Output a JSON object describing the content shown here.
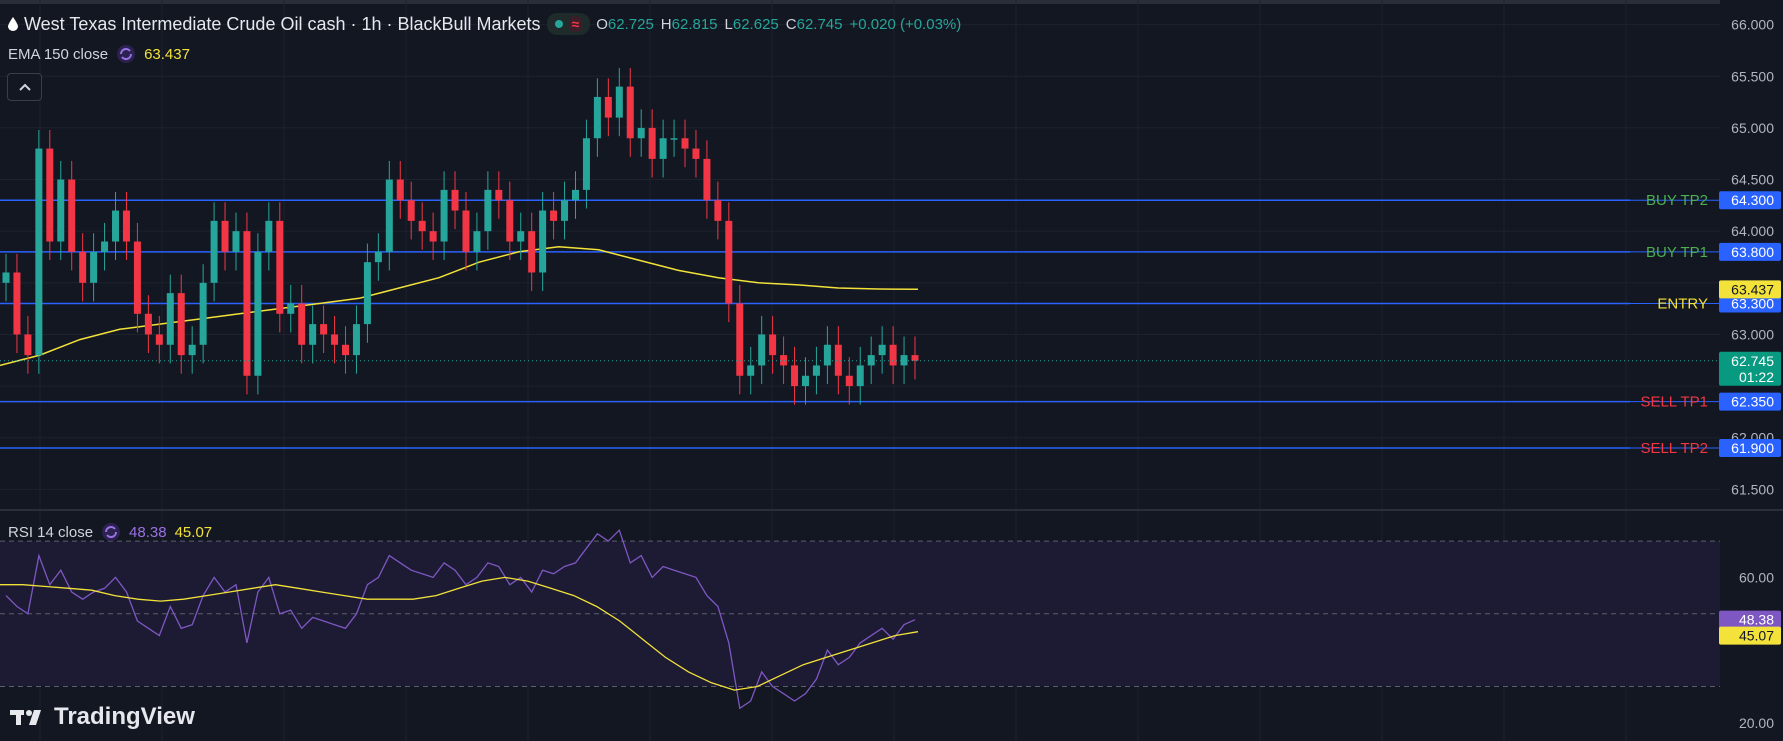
{
  "header": {
    "title": "West Texas Intermediate Crude Oil cash · 1h · BlackBull Markets",
    "ohlc": [
      {
        "k": "O",
        "v": "62.725"
      },
      {
        "k": "H",
        "v": "62.815"
      },
      {
        "k": "L",
        "v": "62.625"
      },
      {
        "k": "C",
        "v": "62.745"
      }
    ],
    "change": "+0.020 (+0.03%)"
  },
  "ema": {
    "label": "EMA 150 close",
    "value": "63.437"
  },
  "rsi": {
    "label": "RSI 14 close",
    "value": "48.38",
    "ma_value": "45.07"
  },
  "logo": {
    "text": "TradingView"
  },
  "colors": {
    "up": "#26a69a",
    "down": "#f23645",
    "level_line": "#2962ff",
    "ema": "#f2e23a",
    "rsi": "#7e57c2",
    "background": "#131722"
  },
  "chart_data": {
    "type": "candlestick",
    "price_axis": {
      "min": 61.3,
      "max": 66.2,
      "ticks": [
        "66.000",
        "65.500",
        "65.000",
        "64.500",
        "64.000",
        "63.000",
        "62.000",
        "61.500"
      ]
    },
    "last_price": "62.745",
    "countdown": "01:22",
    "levels": [
      {
        "name": "BUY TP2",
        "price": 64.3,
        "price_label": "64.300",
        "color": "#4caf50"
      },
      {
        "name": "BUY TP1",
        "price": 63.8,
        "price_label": "63.800",
        "color": "#4caf50"
      },
      {
        "name": "ENTRY",
        "price": 63.3,
        "price_label": "63.300",
        "color": "#f2e23a"
      },
      {
        "name": "SELL TP1",
        "price": 62.35,
        "price_label": "62.350",
        "color": "#f23645"
      },
      {
        "name": "SELL TP2",
        "price": 61.9,
        "price_label": "61.900",
        "color": "#f23645"
      }
    ],
    "ema_label": "63.437",
    "close": [
      63.6,
      63.0,
      62.8,
      64.8,
      63.9,
      64.5,
      63.8,
      63.5,
      63.8,
      63.9,
      64.2,
      63.9,
      63.2,
      63.0,
      62.9,
      63.4,
      62.8,
      62.9,
      63.5,
      64.1,
      63.8,
      64.0,
      62.6,
      63.8,
      64.1,
      63.2,
      63.3,
      62.9,
      63.1,
      63.0,
      62.9,
      62.8,
      63.1,
      63.7,
      63.8,
      64.5,
      64.3,
      64.1,
      64.0,
      63.9,
      64.4,
      64.2,
      63.8,
      64.0,
      64.4,
      64.3,
      63.9,
      64.0,
      63.6,
      64.2,
      64.1,
      64.3,
      64.4,
      64.9,
      65.3,
      65.1,
      65.4,
      64.9,
      65.0,
      64.7,
      64.9,
      64.9,
      64.8,
      64.7,
      64.3,
      64.1,
      63.3,
      62.6,
      62.7,
      63.0,
      62.8,
      62.7,
      62.5,
      62.6,
      62.7,
      62.9,
      62.6,
      62.5,
      62.7,
      62.8,
      62.9,
      62.7,
      62.8,
      62.745
    ],
    "ema": [
      62.7,
      62.8,
      62.95,
      63.05,
      63.1,
      63.15,
      63.2,
      63.25,
      63.3,
      63.35,
      63.45,
      63.55,
      63.7,
      63.8,
      63.85,
      63.82,
      63.72,
      63.62,
      63.55,
      63.5,
      63.48,
      63.45,
      63.44,
      63.437
    ],
    "rsi_axis": {
      "min": 15,
      "max": 78,
      "ticks": [
        "60.00",
        "20.00"
      ],
      "bands": [
        70,
        50,
        30
      ]
    },
    "rsi": [
      55,
      52,
      50,
      66,
      58,
      62,
      56,
      54,
      56,
      57,
      60,
      56,
      48,
      46,
      44,
      52,
      46,
      47,
      55,
      60,
      56,
      58,
      42,
      56,
      60,
      50,
      51,
      46,
      49,
      48,
      47,
      46,
      50,
      58,
      60,
      66,
      64,
      62,
      61,
      60,
      64,
      62,
      58,
      60,
      64,
      63,
      58,
      60,
      56,
      62,
      61,
      63,
      64,
      68,
      72,
      70,
      73,
      64,
      66,
      60,
      63,
      62,
      61,
      60,
      55,
      52,
      42,
      24,
      26,
      34,
      30,
      28,
      26,
      28,
      32,
      40,
      36,
      38,
      42,
      44,
      46,
      43,
      47,
      48.38
    ],
    "rsi_ma": [
      58,
      58,
      57.5,
      57,
      56.5,
      55,
      54,
      53.5,
      54,
      55,
      56,
      57,
      58,
      57,
      56,
      55,
      54,
      54,
      54,
      55,
      57,
      59,
      60,
      59,
      57,
      55,
      52,
      48,
      43,
      38,
      34,
      31,
      29,
      30,
      33,
      36,
      38,
      40,
      42,
      44,
      45.07
    ]
  }
}
